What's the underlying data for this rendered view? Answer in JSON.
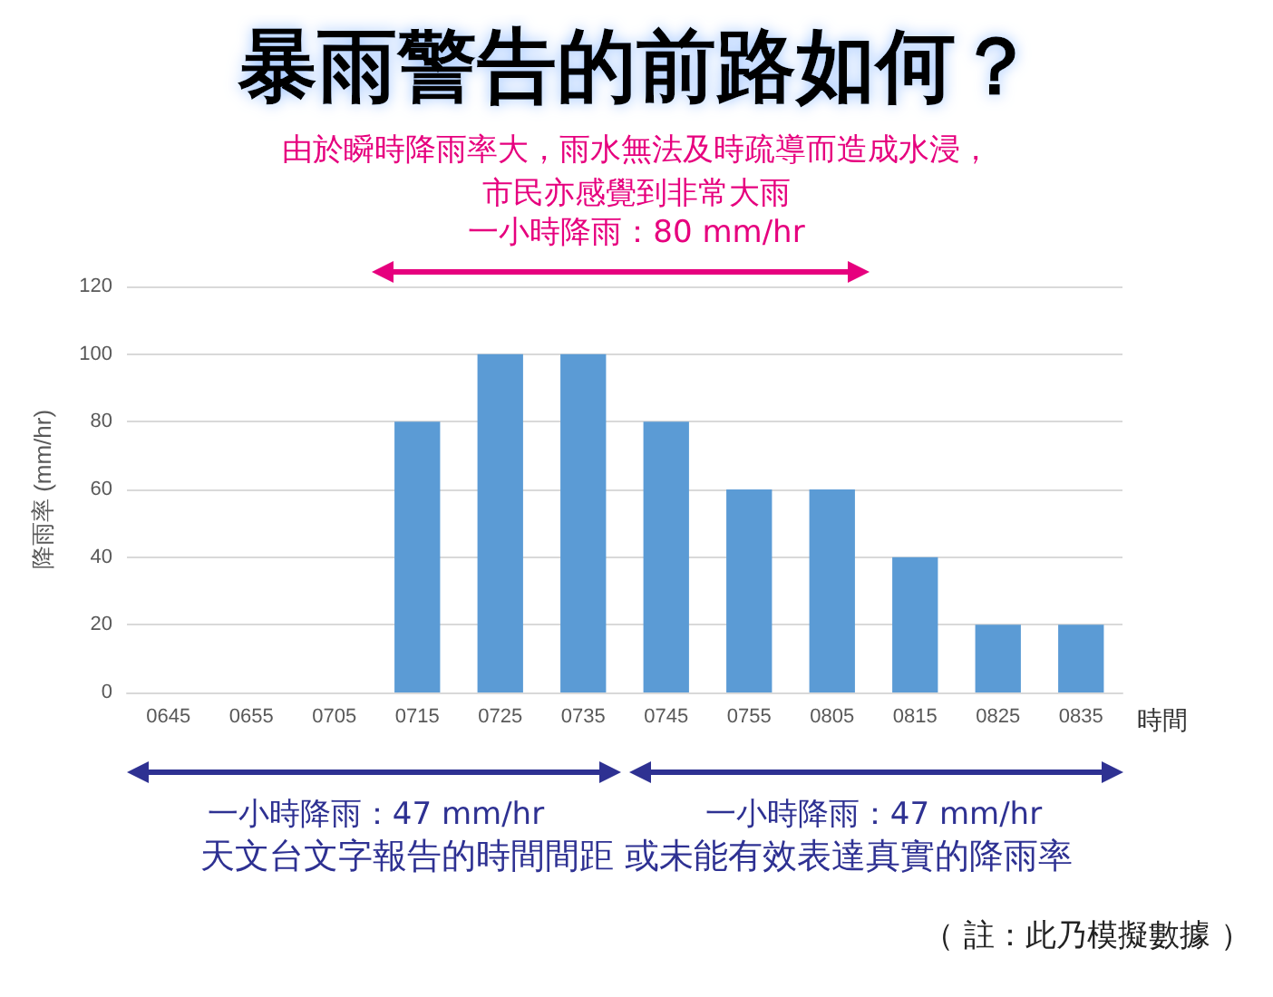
{
  "chart_data": {
    "type": "bar",
    "title": "暴雨警告的前路如何？",
    "subtitle": "由於瞬時降雨率大，雨水無法及時疏導而造成水浸，市民亦感覺到非常大雨",
    "categories": [
      "0645",
      "0655",
      "0705",
      "0715",
      "0725",
      "0735",
      "0745",
      "0755",
      "0805",
      "0815",
      "0825",
      "0835"
    ],
    "values": [
      0,
      0,
      0,
      80,
      100,
      100,
      80,
      60,
      60,
      40,
      20,
      20
    ],
    "color": "#5b9bd5",
    "xlabel": "時間",
    "ylabel": "降雨率 (mm/hr)",
    "ylim": [
      0,
      120
    ],
    "yticks": [
      0,
      20,
      40,
      60,
      80,
      100,
      120
    ],
    "grid": "y",
    "annotations": [
      "一小時降雨：80 mm/hr",
      "一小時降雨：47 mm/hr",
      "一小時降雨：47 mm/hr",
      "天文台文字報告的時間間距 或未能有效表達真實的降雨率",
      "（ 註：此乃模擬數據 ）"
    ]
  }
}
